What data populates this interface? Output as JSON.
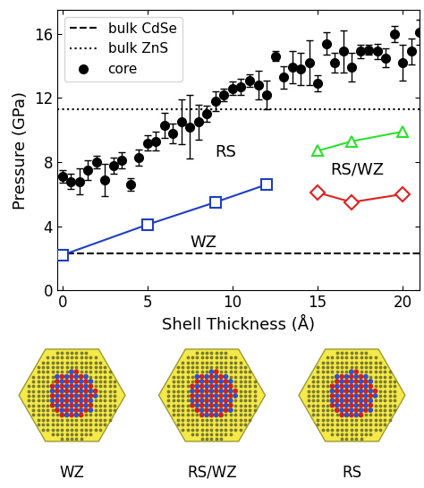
{
  "chart_data": {
    "type": "scatter",
    "xlabel": "Shell Thickness (Å)",
    "ylabel": "Pressure (GPa)",
    "xlim": [
      -0.3,
      21
    ],
    "xticks": [
      0,
      5,
      10,
      15,
      20
    ],
    "ylim": [
      0,
      17.5
    ],
    "yticks": [
      0,
      4,
      8,
      12,
      16
    ],
    "legend": "upper left",
    "annotations": [
      "RS",
      "WZ",
      "RS/WZ"
    ],
    "series": [
      {
        "name": "bulk CdSe",
        "type": "hline",
        "color": "#000000",
        "line_style": "dashed",
        "values": [
          2.3
        ]
      },
      {
        "name": "bulk ZnS",
        "type": "hline",
        "color": "#000000",
        "line_style": "dotted",
        "values": [
          11.3
        ]
      },
      {
        "name": "core",
        "type": "scatter",
        "color": "#000000",
        "marker": "circle",
        "x": [
          0,
          0.5,
          1,
          1.5,
          2,
          2.5,
          3,
          3.5,
          4,
          4.5,
          5,
          5.5,
          6,
          6.5,
          7,
          7.5,
          8,
          8.5,
          9,
          9.5,
          10,
          10.5,
          11,
          11.5,
          12,
          12.5,
          13,
          13.5,
          14,
          14.5,
          15,
          15.5,
          16,
          16.5,
          17,
          17.5,
          18,
          18.5,
          19,
          19.5,
          20,
          20.5,
          21
        ],
        "values": [
          7.1,
          6.8,
          6.8,
          7.5,
          8.0,
          6.9,
          7.8,
          8.1,
          6.6,
          8.3,
          9.2,
          9.3,
          10.3,
          9.8,
          10.5,
          10.2,
          10.5,
          11.0,
          11.8,
          12.2,
          12.6,
          12.7,
          13.1,
          12.8,
          12.2,
          14.6,
          13.3,
          13.9,
          13.8,
          14.2,
          12.9,
          15.4,
          14.2,
          14.9,
          13.9,
          14.9,
          15.0,
          14.9,
          14.5,
          16.0,
          14.2,
          14.9,
          16.1
        ],
        "errors": [
          0.4,
          0.5,
          0.8,
          0.6,
          0.4,
          1.0,
          0.5,
          0.5,
          0.4,
          0.5,
          0.5,
          0.6,
          0.8,
          0.6,
          1.4,
          2.0,
          1.1,
          0.5,
          0.6,
          0.4,
          0.4,
          0.5,
          0.4,
          0.9,
          0.9,
          0.3,
          0.7,
          1.0,
          1.0,
          1.4,
          0.5,
          0.7,
          0.6,
          1.3,
          0.9,
          0.4,
          0.3,
          0.5,
          0.6,
          0.5,
          1.1,
          0.8,
          0.8
        ]
      },
      {
        "type": "line",
        "color": "#1f3fbf",
        "marker": "square",
        "x": [
          0,
          5,
          9,
          12
        ],
        "values": [
          2.2,
          4.1,
          5.5,
          6.6
        ]
      },
      {
        "type": "line",
        "color": "#2ee02e",
        "marker": "triangle",
        "x": [
          15,
          17,
          20
        ],
        "values": [
          8.7,
          9.3,
          9.9
        ]
      },
      {
        "type": "line",
        "color": "#e02020",
        "marker": "diamond",
        "x": [
          15,
          17,
          20
        ],
        "values": [
          6.1,
          5.5,
          6.0
        ]
      }
    ],
    "structures": [
      "WZ",
      "RS/WZ",
      "RS"
    ]
  }
}
